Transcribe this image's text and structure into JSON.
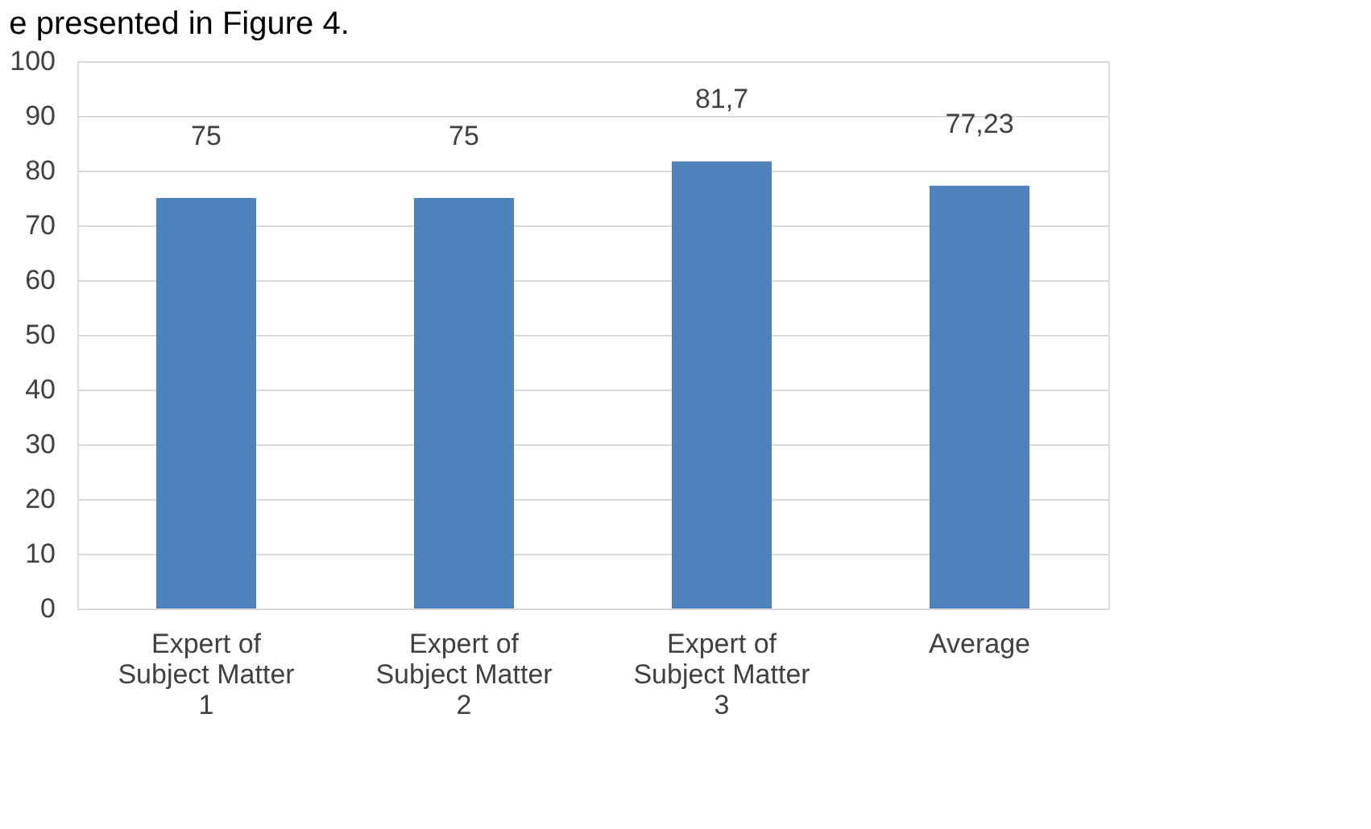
{
  "chart_data": {
    "type": "bar",
    "categories": [
      "Expert of Subject Matter 1",
      "Expert of Subject Matter 2",
      "Expert of Subject Matter 3",
      "Average"
    ],
    "values": [
      75,
      75,
      81.7,
      77.23
    ],
    "value_labels": [
      "75",
      "75",
      "81,7",
      "77,23"
    ],
    "color": "#4f81bd",
    "ylim": [
      0,
      100
    ],
    "yticks": [
      0,
      10,
      20,
      30,
      40,
      50,
      60,
      70,
      80,
      90,
      100
    ],
    "grid": "y",
    "annotations": [
      "e presented in Figure 4."
    ]
  }
}
